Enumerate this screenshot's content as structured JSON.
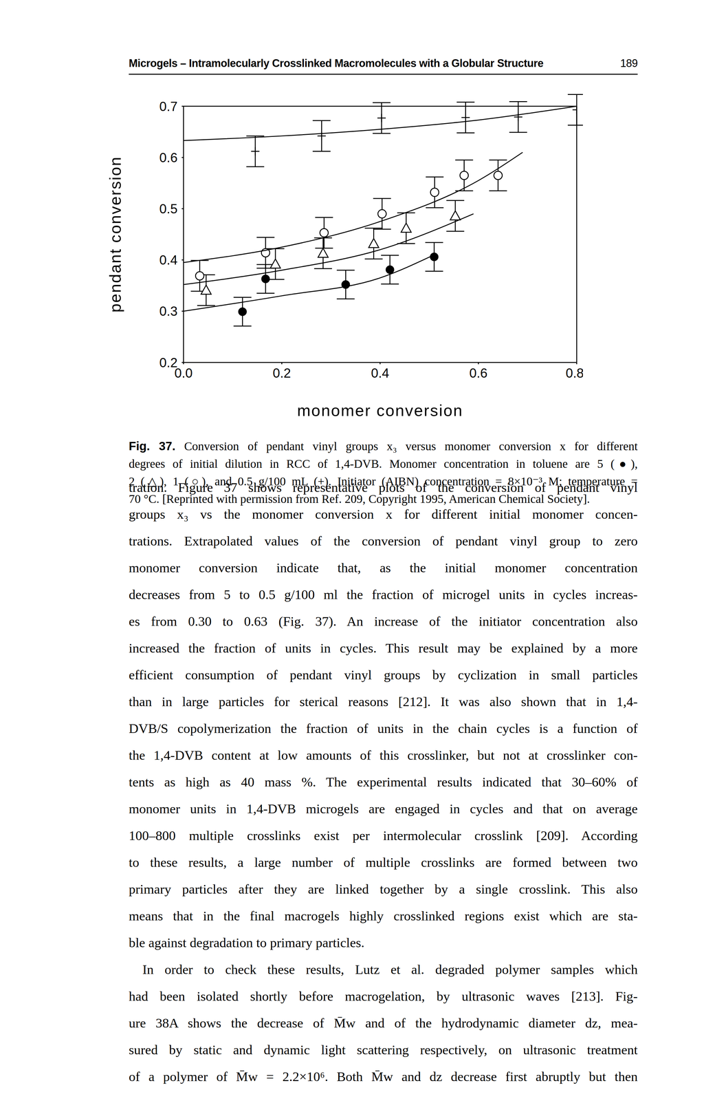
{
  "header": {
    "title": "Microgels – Intramolecularly Crosslinked Macromolecules with a Globular Structure",
    "page": 189
  },
  "chart_data": {
    "type": "scatter",
    "x_label": "monomer conversion",
    "y_label": "pendant conversion",
    "color": "#000000",
    "xlim": [
      0,
      0.8
    ],
    "xticks": [
      {
        "value": 0,
        "label": "0.0"
      },
      0.2,
      0.4,
      0.6,
      0.8
    ],
    "ylim": [
      0.2,
      0.7
    ],
    "yticks": [
      0.2,
      0.3,
      0.4,
      0.5,
      0.6,
      0.7
    ],
    "grid": false,
    "series": [
      {
        "type": "scatter",
        "marker": "filled_circle",
        "x": [
          0.12,
          0.167,
          0.33,
          0.42,
          0.51
        ],
        "values": [
          0.299,
          0.363,
          0.352,
          0.381,
          0.406
        ],
        "errors": [
          0.028,
          0.028,
          0.028,
          0.028,
          0.028
        ]
      },
      {
        "type": "scatter",
        "marker": "open_triangle",
        "x": [
          0.046,
          0.187,
          0.284,
          0.387,
          0.453,
          0.553
        ],
        "values": [
          0.341,
          0.392,
          0.413,
          0.432,
          0.462,
          0.486
        ],
        "errors": [
          0.03,
          0.03,
          0.03,
          0.03,
          0.03,
          0.03
        ]
      },
      {
        "type": "scatter",
        "marker": "open_circle",
        "x": [
          0.033,
          0.167,
          0.286,
          0.404,
          0.511,
          0.571,
          0.64
        ],
        "values": [
          0.369,
          0.414,
          0.453,
          0.49,
          0.532,
          0.565,
          0.565
        ],
        "errors": [
          0.03,
          0.03,
          0.03,
          0.03,
          0.03,
          0.03,
          0.03
        ]
      },
      {
        "type": "scatter",
        "marker": "plus",
        "x": [
          0.146,
          0.281,
          0.403,
          0.574,
          0.681,
          0.8
        ],
        "values": [
          0.612,
          0.642,
          0.677,
          0.678,
          0.679,
          0.693
        ],
        "errors": [
          0.03,
          0.03,
          0.03,
          0.03,
          0.03,
          0.03
        ]
      },
      {
        "type": "line",
        "line_style": "solid",
        "x": [
          0,
          0.2,
          0.4,
          0.6,
          0.8
        ],
        "values": [
          0.633,
          0.642,
          0.655,
          0.673,
          0.7
        ]
      },
      {
        "type": "line",
        "line_style": "solid",
        "x": [
          0,
          0.2,
          0.4,
          0.6,
          0.69
        ],
        "values": [
          0.395,
          0.425,
          0.475,
          0.555,
          0.61
        ]
      },
      {
        "type": "line",
        "line_style": "solid",
        "x": [
          0,
          0.2,
          0.4,
          0.59
        ],
        "values": [
          0.352,
          0.38,
          0.42,
          0.49
        ]
      },
      {
        "type": "line",
        "line_style": "solid",
        "x": [
          0,
          0.2,
          0.4,
          0.51
        ],
        "values": [
          0.3,
          0.33,
          0.365,
          0.41
        ]
      }
    ]
  },
  "caption": {
    "label": "Fig. 37.",
    "lines": [
      "Conversion of pendant vinyl groups x₃ versus monomer conversion x for different",
      "degrees of initial dilution in RCC of 1,4-DVB. Monomer concentration in toluene are 5 (●),",
      "2 (△), 1 (○), and 0.5 g/100 mL (+). Initiator (AIBN) concentration = 8×10⁻³ M; temperature =",
      "70 °C. [Reprinted with permission from Ref. 209, Copyright 1995, American Chemical Society]."
    ]
  },
  "body": [
    [
      "tration. Figure 37 shows representative plots of the conversion of pendant vinyl",
      "groups x₃ vs the monomer conversion x for different initial monomer concen-",
      "trations. Extrapolated values of the conversion of pendant vinyl group to zero",
      "monomer conversion indicate that, as the initial monomer concentration",
      "decreases from 5 to 0.5 g/100 ml the fraction of microgel units in cycles increas-",
      "es from 0.30 to 0.63 (Fig. 37). An increase of the initiator concentration also",
      "increased the fraction of units in cycles. This result may be explained by a more",
      "efficient consumption of pendant vinyl groups by cyclization in small particles",
      "than in large particles for sterical reasons [212]. It was also shown that in 1,4-",
      "DVB/S copolymerization the fraction of units in the chain cycles is a function of",
      "the 1,4-DVB content at low amounts of this crosslinker, but not at crosslinker con-",
      "tents as high as 40 mass %. The experimental results indicated that 30–60% of",
      "monomer units in 1,4-DVB microgels are engaged in cycles and that on average",
      "100–800 multiple crosslinks exist per intermolecular crosslink [209]. According",
      "to these results, a large number of multiple crosslinks are formed between two",
      "primary particles after they are linked together by a single crosslink. This also",
      "means that in the final macrogels highly crosslinked regions exist which are sta-",
      "ble against degradation to primary particles."
    ],
    [
      "In order to check these results, Lutz et al. degraded polymer samples which",
      "had been isolated shortly before macrogelation, by ultrasonic waves [213]. Fig-",
      "ure 38A shows the decrease of M̄w and of the hydrodynamic diameter dz, mea-",
      "sured by static and dynamic light scattering respectively, on ultrasonic treatment",
      "of a polymer of M̄w = 2.2×10⁶. Both M̄w and dz decrease first abruptly but then"
    ]
  ]
}
